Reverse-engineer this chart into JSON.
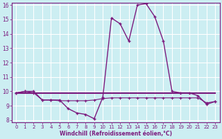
{
  "xlabel": "Windchill (Refroidissement éolien,°C)",
  "x": [
    0,
    1,
    2,
    3,
    4,
    5,
    6,
    7,
    8,
    9,
    10,
    11,
    12,
    13,
    14,
    15,
    16,
    17,
    18,
    19,
    20,
    21,
    22,
    23
  ],
  "windchill": [
    9.9,
    10.0,
    10.0,
    9.4,
    9.4,
    9.4,
    8.8,
    8.5,
    8.4,
    8.1,
    9.6,
    15.1,
    14.7,
    13.5,
    16.0,
    16.1,
    15.2,
    13.5,
    10.0,
    9.9,
    9.9,
    9.7,
    9.1,
    9.3
  ],
  "flat_ref": [
    9.9,
    9.9,
    9.9,
    9.9,
    9.9,
    9.9,
    9.9,
    9.9,
    9.9,
    9.9,
    9.9,
    9.9,
    9.9,
    9.9,
    9.9,
    9.9,
    9.9,
    9.9,
    9.9,
    9.9,
    9.9,
    9.9,
    9.9,
    9.9
  ],
  "apparent": [
    9.9,
    10.0,
    9.9,
    9.4,
    9.4,
    9.35,
    9.35,
    9.35,
    9.35,
    9.4,
    9.5,
    9.55,
    9.55,
    9.55,
    9.55,
    9.55,
    9.55,
    9.55,
    9.55,
    9.55,
    9.55,
    9.55,
    9.2,
    9.3
  ],
  "color": "#7b1a7e",
  "bg_color": "#cceef2",
  "grid_color": "#b0dce0",
  "ylim": [
    8,
    16
  ],
  "xlim": [
    -0.5,
    23.5
  ],
  "yticks": [
    8,
    9,
    10,
    11,
    12,
    13,
    14,
    15,
    16
  ],
  "xticks": [
    0,
    1,
    2,
    3,
    4,
    5,
    6,
    7,
    8,
    9,
    10,
    11,
    12,
    13,
    14,
    15,
    16,
    17,
    18,
    19,
    20,
    21,
    22,
    23
  ]
}
